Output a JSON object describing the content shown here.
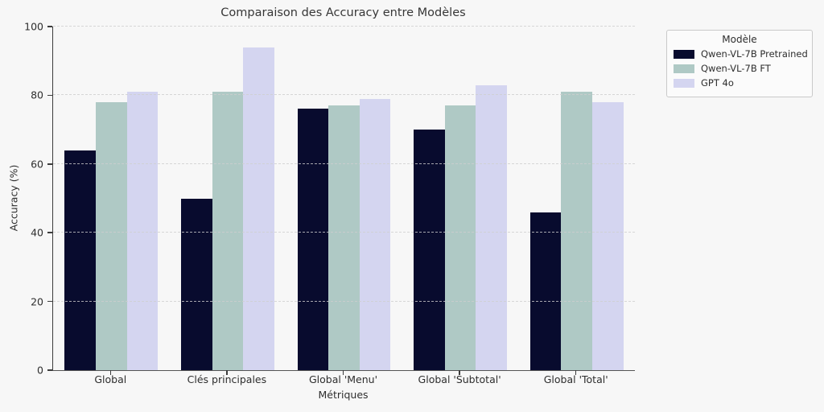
{
  "chart_data": {
    "type": "bar",
    "title": "Comparaison des Accuracy entre Modèles",
    "xlabel": "Métriques",
    "ylabel": "Accuracy (%)",
    "legend_title": "Modèle",
    "legend_position": "upper right, outside plot",
    "grid": "horizontal dashed, drawn over bars",
    "categories": [
      "Global",
      "Clés principales",
      "Global 'Menu'",
      "Global 'Subtotal'",
      "Global 'Total'"
    ],
    "series": [
      {
        "name": "Qwen-VL-7B Pretrained",
        "color": "#080b2e",
        "values": [
          64,
          50,
          76,
          70,
          46
        ]
      },
      {
        "name": "Qwen-VL-7B FT",
        "color": "#afc9c5",
        "values": [
          78,
          81,
          77,
          77,
          81
        ]
      },
      {
        "name": "GPT 4o",
        "color": "#d4d5f0",
        "values": [
          81,
          94,
          79,
          83,
          78
        ]
      }
    ],
    "ylim": [
      0,
      100
    ],
    "yticks": [
      0,
      20,
      40,
      60,
      80,
      100
    ],
    "colors": {
      "figure_background": "#f7f7f7",
      "gridline": "#cfcfcf",
      "axis_spine": "#3c3c3c",
      "text": "#2e2e2e"
    }
  }
}
